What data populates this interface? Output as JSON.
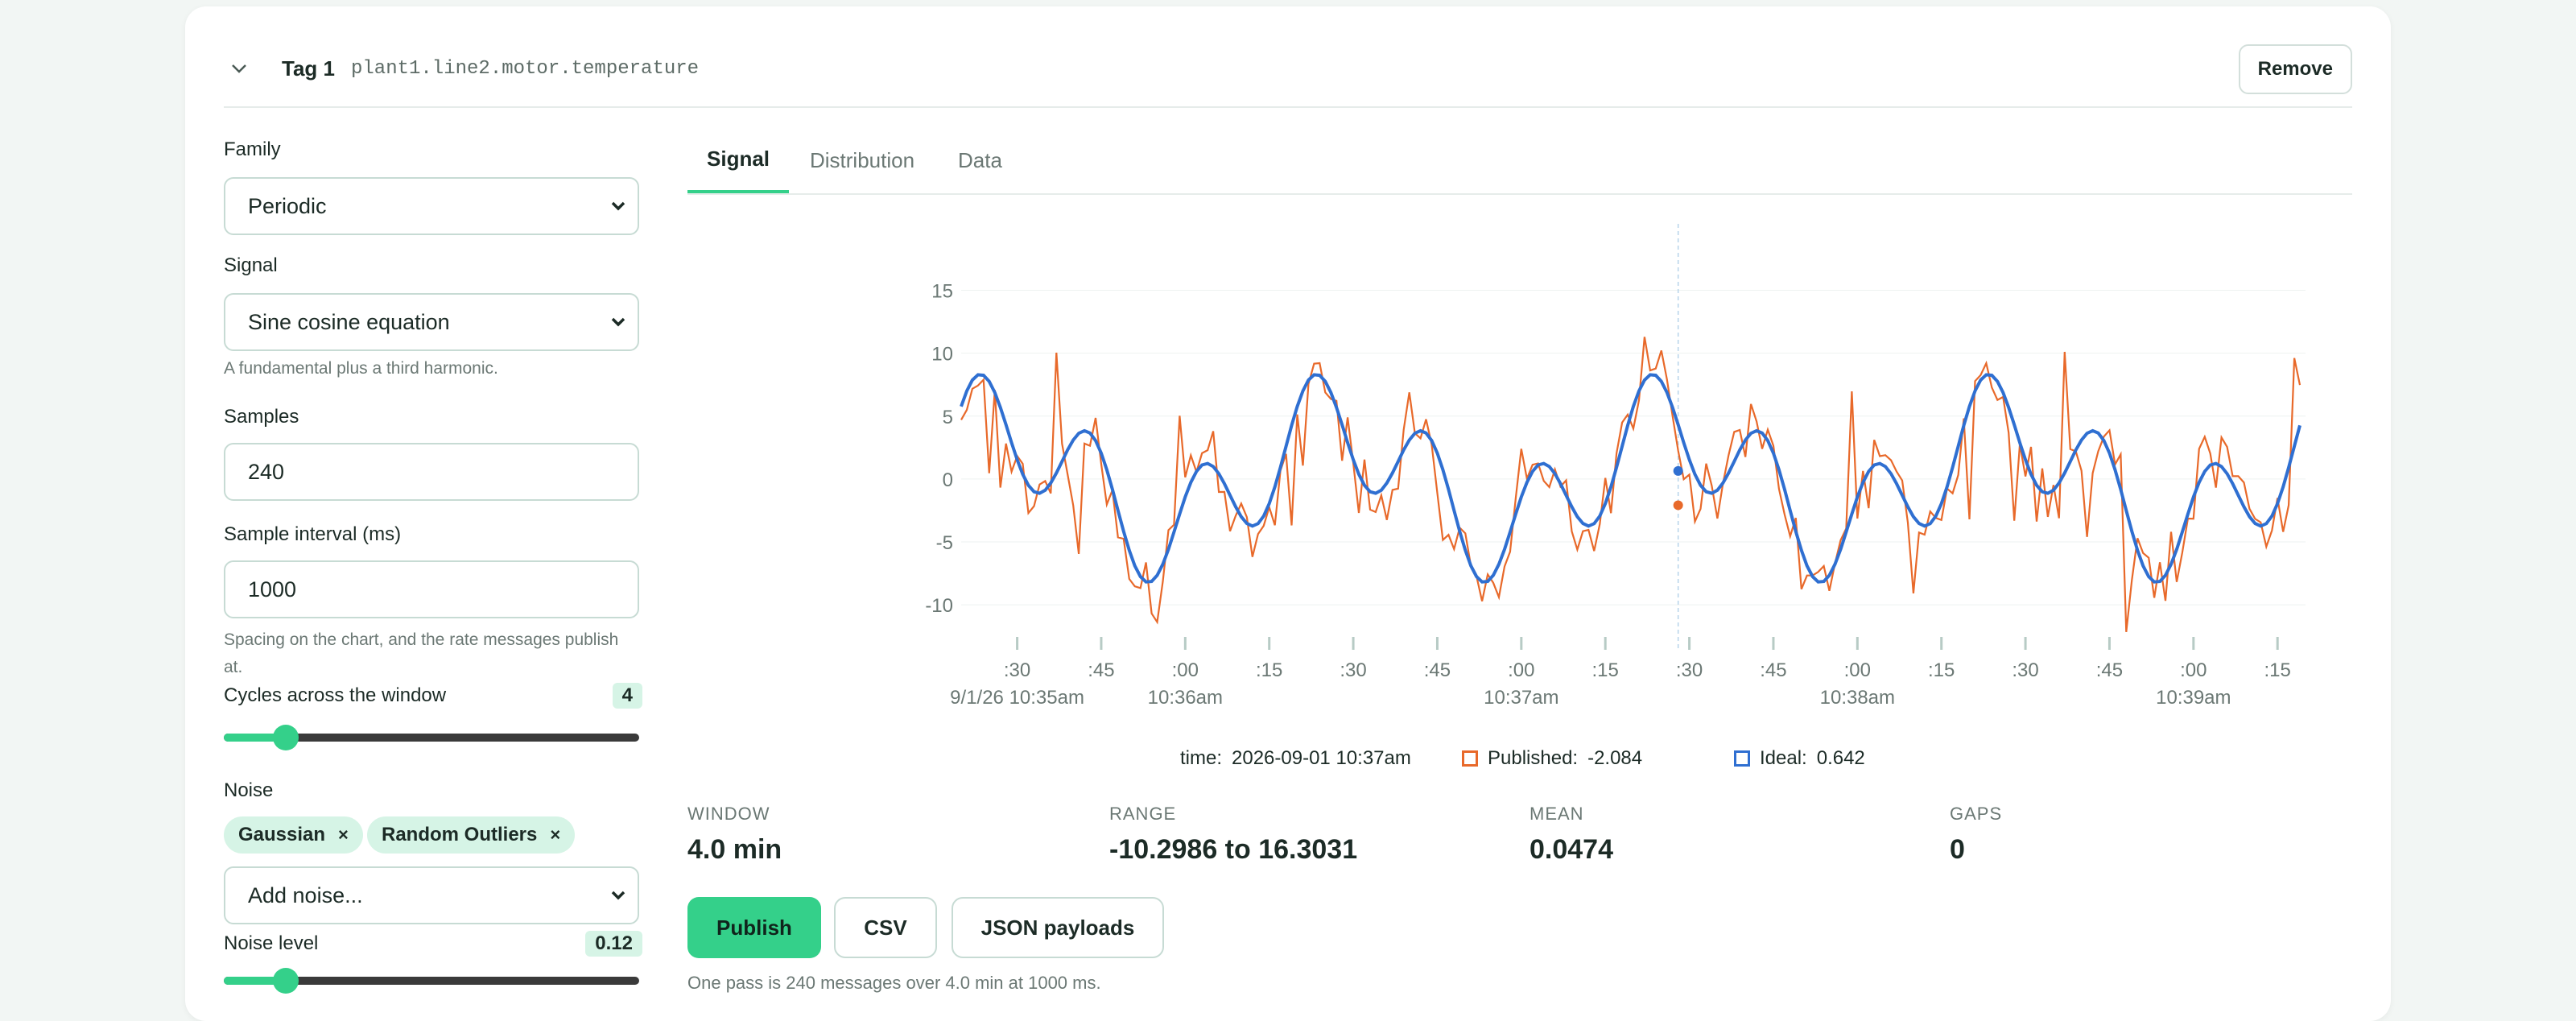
{
  "header": {
    "tag_label": "Tag 1",
    "tag_path": "plant1.line2.motor.temperature",
    "remove_label": "Remove"
  },
  "form": {
    "family_label": "Family",
    "family_value": "Periodic",
    "signal_label": "Signal",
    "signal_value": "Sine cosine equation",
    "signal_help": "A fundamental plus a third harmonic.",
    "samples_label": "Samples",
    "samples_value": "240",
    "interval_label": "Sample interval (ms)",
    "interval_value": "1000",
    "interval_help": "Spacing on the chart, and the rate messages publish at.",
    "cycles_label": "Cycles across the window",
    "cycles_value": "4",
    "cycles_fraction": 0.15,
    "noise_label": "Noise",
    "noise_chips": [
      "Gaussian",
      "Random Outliers"
    ],
    "noise_chip_remove": "×",
    "add_noise_value": "Add noise...",
    "noise_level_label": "Noise level",
    "noise_level_value": "0.12",
    "noise_level_fraction": 0.15
  },
  "tabs": [
    "Signal",
    "Distribution",
    "Data"
  ],
  "active_tab": "Signal",
  "chart_data": {
    "type": "line",
    "y_ticks": [
      "15",
      "10",
      "5",
      "0",
      "-5",
      "-10"
    ],
    "ylim": [
      -13,
      19
    ],
    "x_range_seconds": [
      0,
      240
    ],
    "x_ticks": [
      ":30",
      ":45",
      ":00",
      ":15",
      ":30",
      ":45",
      ":00",
      ":15",
      ":30",
      ":45",
      ":00",
      ":15",
      ":30",
      ":45",
      ":00",
      ":15"
    ],
    "x_major_labels": [
      "9/1/26 10:35am",
      "10:36am",
      "10:37am",
      "10:38am",
      "10:39am"
    ],
    "series": [
      {
        "name": "Published",
        "color": "#e8692a"
      },
      {
        "name": "Ideal",
        "color": "#2f6fd1"
      }
    ],
    "hover_seconds": 128
  },
  "legend": {
    "time_label": "time:",
    "time_value": "2026-09-01 10:37am",
    "published_label": "Published:",
    "published_value": "-2.084",
    "ideal_label": "Ideal:",
    "ideal_value": "0.642"
  },
  "stats": [
    {
      "key": "WINDOW",
      "value": "4.0 min"
    },
    {
      "key": "RANGE",
      "value": "-10.2986 to 16.3031"
    },
    {
      "key": "MEAN",
      "value": "0.0474"
    },
    {
      "key": "GAPS",
      "value": "0"
    }
  ],
  "actions": {
    "publish": "Publish",
    "csv": "CSV",
    "json": "JSON payloads"
  },
  "footer_note": "One pass is 240 messages over 4.0 min at 1000 ms.",
  "colors": {
    "accent": "#34d08a",
    "published": "#e8692a",
    "ideal": "#2f6fd1"
  }
}
